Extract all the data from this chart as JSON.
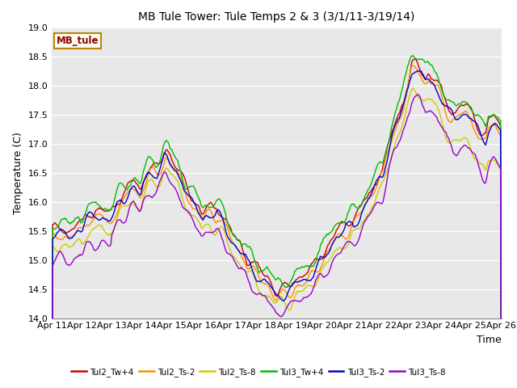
{
  "title": "MB Tule Tower: Tule Temps 2 & 3 (3/1/11-3/19/14)",
  "xlabel": "Time",
  "ylabel": "Temperature (C)",
  "ylim": [
    14.0,
    19.0
  ],
  "yticks": [
    14.0,
    14.5,
    15.0,
    15.5,
    16.0,
    16.5,
    17.0,
    17.5,
    18.0,
    18.5,
    19.0
  ],
  "xtick_labels": [
    "Apr 11",
    "Apr 12",
    "Apr 13",
    "Apr 14",
    "Apr 15",
    "Apr 16",
    "Apr 17",
    "Apr 18",
    "Apr 19",
    "Apr 20",
    "Apr 21",
    "Apr 22",
    "Apr 23",
    "Apr 24",
    "Apr 25",
    "Apr 26"
  ],
  "annotation_text": "MB_tule",
  "annotation_color": "#8B0000",
  "annotation_bg": "#FFFFF0",
  "annotation_border": "#B8860B",
  "series": [
    {
      "label": "Tul2_Tw+4",
      "color": "#CC0000",
      "lw": 1.0
    },
    {
      "label": "Tul2_Ts-2",
      "color": "#FF8C00",
      "lw": 1.0
    },
    {
      "label": "Tul2_Ts-8",
      "color": "#CCCC00",
      "lw": 1.0
    },
    {
      "label": "Tul3_Tw+4",
      "color": "#00BB00",
      "lw": 1.0
    },
    {
      "label": "Tul3_Ts-2",
      "color": "#0000CC",
      "lw": 1.0
    },
    {
      "label": "Tul3_Ts-8",
      "color": "#9900CC",
      "lw": 1.0
    }
  ],
  "bg_color": "#E8E8E8",
  "fig_bg": "#FFFFFF",
  "title_fontsize": 10,
  "axis_fontsize": 8,
  "label_fontsize": 9
}
